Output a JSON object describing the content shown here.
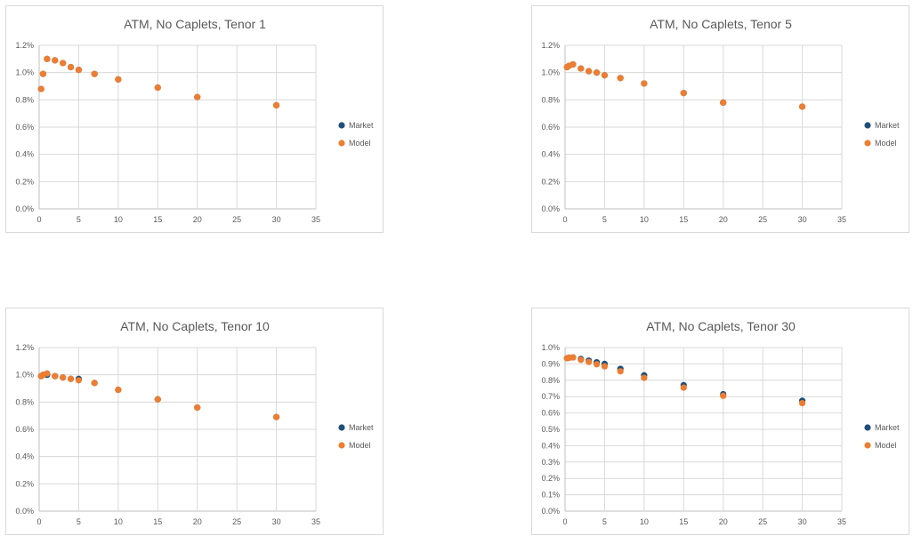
{
  "colors": {
    "market": "#1f4e79",
    "model": "#ed7d31"
  },
  "chart_data": [
    {
      "type": "scatter",
      "title": "ATM, No Caplets, Tenor 1",
      "xlabel": "",
      "ylabel": "",
      "xlim": [
        0,
        35
      ],
      "ylim": [
        0,
        0.012
      ],
      "xticks": [
        "0",
        "5",
        "10",
        "15",
        "20",
        "25",
        "30",
        "35"
      ],
      "yticks": [
        "0.0%",
        "0.2%",
        "0.4%",
        "0.6%",
        "0.8%",
        "1.0%",
        "1.2%"
      ],
      "legend_position": "right",
      "series": [
        {
          "name": "Market",
          "x": [
            0.25,
            0.5,
            1,
            2,
            3,
            4,
            5,
            7,
            10,
            15,
            20,
            30
          ],
          "y": [
            0.0088,
            0.0099,
            0.011,
            0.0109,
            0.0107,
            0.0104,
            0.0102,
            0.0099,
            0.0095,
            0.0089,
            0.0082,
            0.0076
          ]
        },
        {
          "name": "Model",
          "x": [
            0.25,
            0.5,
            1,
            2,
            3,
            4,
            5,
            7,
            10,
            15,
            20,
            30
          ],
          "y": [
            0.0088,
            0.0099,
            0.011,
            0.0109,
            0.0107,
            0.0104,
            0.0102,
            0.0099,
            0.0095,
            0.0089,
            0.0082,
            0.0076
          ]
        }
      ]
    },
    {
      "type": "scatter",
      "title": "ATM, No Caplets, Tenor 5",
      "xlabel": "",
      "ylabel": "",
      "xlim": [
        0,
        35
      ],
      "ylim": [
        0,
        0.012
      ],
      "xticks": [
        "0",
        "5",
        "10",
        "15",
        "20",
        "25",
        "30",
        "35"
      ],
      "yticks": [
        "0.0%",
        "0.2%",
        "0.4%",
        "0.6%",
        "0.8%",
        "1.0%",
        "1.2%"
      ],
      "legend_position": "right",
      "series": [
        {
          "name": "Market",
          "x": [
            0.25,
            0.5,
            1,
            2,
            3,
            4,
            5,
            7,
            10,
            15,
            20,
            30
          ],
          "y": [
            0.0104,
            0.0105,
            0.0106,
            0.0103,
            0.0101,
            0.01,
            0.0098,
            0.0096,
            0.0092,
            0.0085,
            0.0078,
            0.0075
          ]
        },
        {
          "name": "Model",
          "x": [
            0.25,
            0.5,
            1,
            2,
            3,
            4,
            5,
            7,
            10,
            15,
            20,
            30
          ],
          "y": [
            0.0104,
            0.0105,
            0.0106,
            0.0103,
            0.0101,
            0.01,
            0.0098,
            0.0096,
            0.0092,
            0.0085,
            0.0078,
            0.0075
          ]
        }
      ]
    },
    {
      "type": "scatter",
      "title": "ATM, No Caplets, Tenor 10",
      "xlabel": "",
      "ylabel": "",
      "xlim": [
        0,
        35
      ],
      "ylim": [
        0,
        0.012
      ],
      "xticks": [
        "0",
        "5",
        "10",
        "15",
        "20",
        "25",
        "30",
        "35"
      ],
      "yticks": [
        "0.0%",
        "0.2%",
        "0.4%",
        "0.6%",
        "0.8%",
        "1.0%",
        "1.2%"
      ],
      "legend_position": "right",
      "series": [
        {
          "name": "Market",
          "x": [
            0.25,
            0.5,
            1,
            2,
            3,
            4,
            5,
            7,
            10,
            15,
            20,
            30
          ],
          "y": [
            0.0099,
            0.01,
            0.01,
            0.0099,
            0.0098,
            0.0097,
            0.0097,
            0.0094,
            0.0089,
            0.0082,
            0.0076,
            0.0069
          ]
        },
        {
          "name": "Model",
          "x": [
            0.25,
            0.5,
            1,
            2,
            3,
            4,
            5,
            7,
            10,
            15,
            20,
            30
          ],
          "y": [
            0.0099,
            0.01,
            0.0101,
            0.0099,
            0.0098,
            0.0097,
            0.0096,
            0.0094,
            0.0089,
            0.0082,
            0.0076,
            0.0069
          ]
        }
      ]
    },
    {
      "type": "scatter",
      "title": "ATM, No Caplets, Tenor 30",
      "xlabel": "",
      "ylabel": "",
      "xlim": [
        0,
        35
      ],
      "ylim": [
        0,
        0.01
      ],
      "xticks": [
        "0",
        "5",
        "10",
        "15",
        "20",
        "25",
        "30",
        "35"
      ],
      "yticks": [
        "0.0%",
        "0.1%",
        "0.2%",
        "0.3%",
        "0.4%",
        "0.5%",
        "0.6%",
        "0.7%",
        "0.8%",
        "0.9%",
        "1.0%"
      ],
      "legend_position": "right",
      "series": [
        {
          "name": "Market",
          "x": [
            0.25,
            0.5,
            1,
            2,
            3,
            4,
            5,
            7,
            10,
            15,
            20,
            30
          ],
          "y": [
            0.00935,
            0.00938,
            0.0094,
            0.0093,
            0.0092,
            0.0091,
            0.009,
            0.0087,
            0.0083,
            0.0077,
            0.00715,
            0.00675
          ]
        },
        {
          "name": "Model",
          "x": [
            0.25,
            0.5,
            1,
            2,
            3,
            4,
            5,
            7,
            10,
            15,
            20,
            30
          ],
          "y": [
            0.00935,
            0.00938,
            0.0094,
            0.00925,
            0.00912,
            0.00898,
            0.00885,
            0.00855,
            0.00815,
            0.00755,
            0.00705,
            0.0066
          ]
        }
      ]
    }
  ]
}
